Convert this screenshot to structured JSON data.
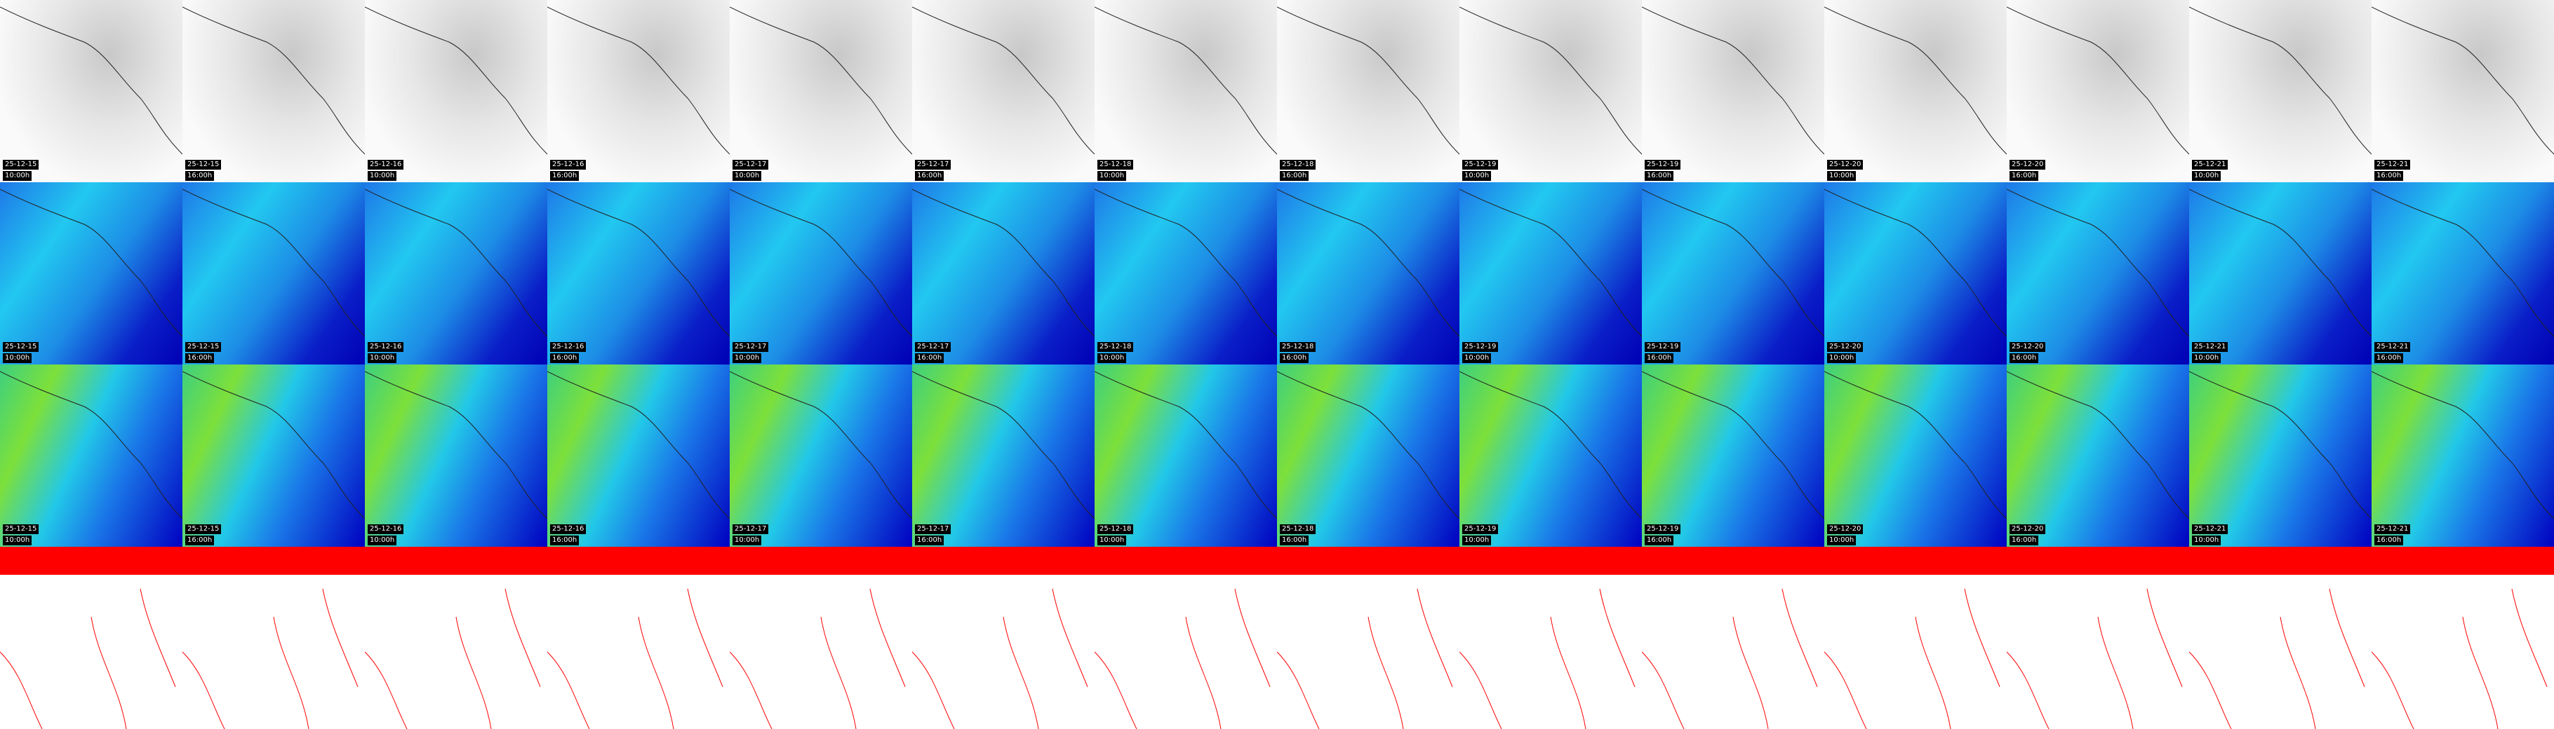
{
  "columns": [
    {
      "date": "25-12-15",
      "time": "10:00h"
    },
    {
      "date": "25-12-15",
      "time": "16:00h"
    },
    {
      "date": "25-12-16",
      "time": "10:00h"
    },
    {
      "date": "25-12-16",
      "time": "16:00h"
    },
    {
      "date": "25-12-17",
      "time": "10:00h"
    },
    {
      "date": "25-12-17",
      "time": "16:00h"
    },
    {
      "date": "25-12-18",
      "time": "10:00h"
    },
    {
      "date": "25-12-18",
      "time": "16:00h"
    },
    {
      "date": "25-12-19",
      "time": "10:00h"
    },
    {
      "date": "25-12-19",
      "time": "16:00h"
    },
    {
      "date": "25-12-20",
      "time": "10:00h"
    },
    {
      "date": "25-12-20",
      "time": "16:00h"
    },
    {
      "date": "25-12-21",
      "time": "10:00h"
    },
    {
      "date": "25-12-21",
      "time": "16:00h"
    }
  ]
}
